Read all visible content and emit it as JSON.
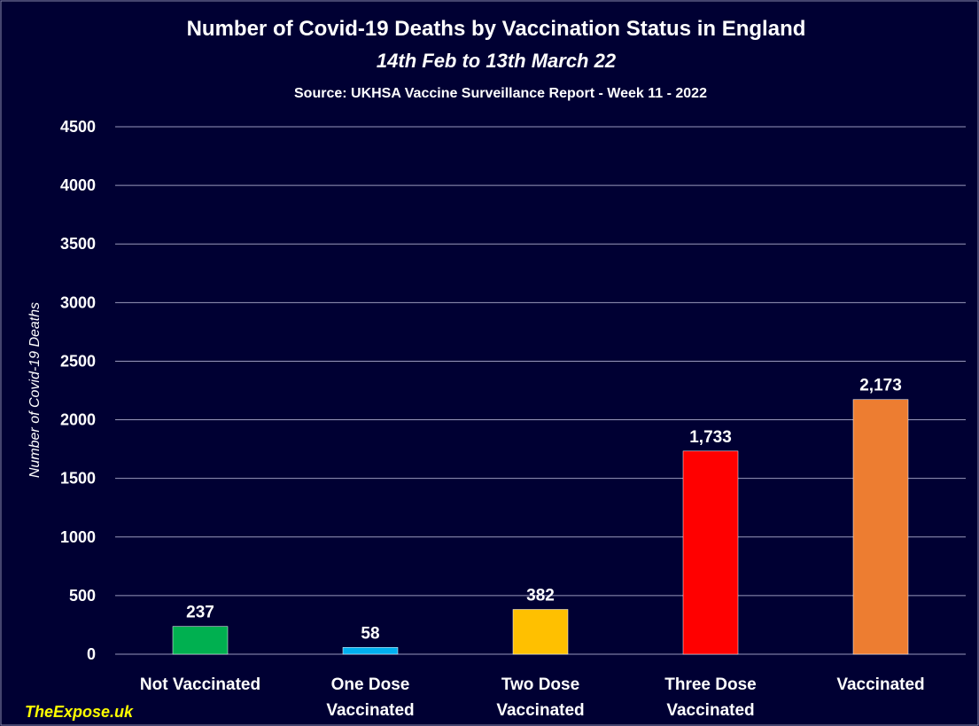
{
  "chart_data": {
    "type": "bar",
    "title": "Number of Covid-19 Deaths by Vaccination Status in England",
    "subtitle": "14th Feb to 13th March 22",
    "source": "Source: UKHSA Vaccine Surveillance Report - Week 11 - 2022",
    "y_label": "Number of Covid-19 Deaths",
    "watermark": "TheExpose.uk",
    "categories": [
      "Not Vaccinated",
      "One Dose Vaccinated",
      "Two Dose Vaccinated",
      "Three Dose Vaccinated",
      "Vaccinated"
    ],
    "values": [
      237,
      58,
      382,
      1733,
      2173
    ],
    "value_labels": [
      "237",
      "58",
      "382",
      "1,733",
      "2,173"
    ],
    "colors": [
      "#00b050",
      "#00b0f0",
      "#ffc000",
      "#ff0000",
      "#ed7d31"
    ],
    "ylim": [
      0,
      4500
    ],
    "yticks": [
      0,
      500,
      1000,
      1500,
      2000,
      2500,
      3000,
      3500,
      4000,
      4500
    ],
    "grid": true
  }
}
